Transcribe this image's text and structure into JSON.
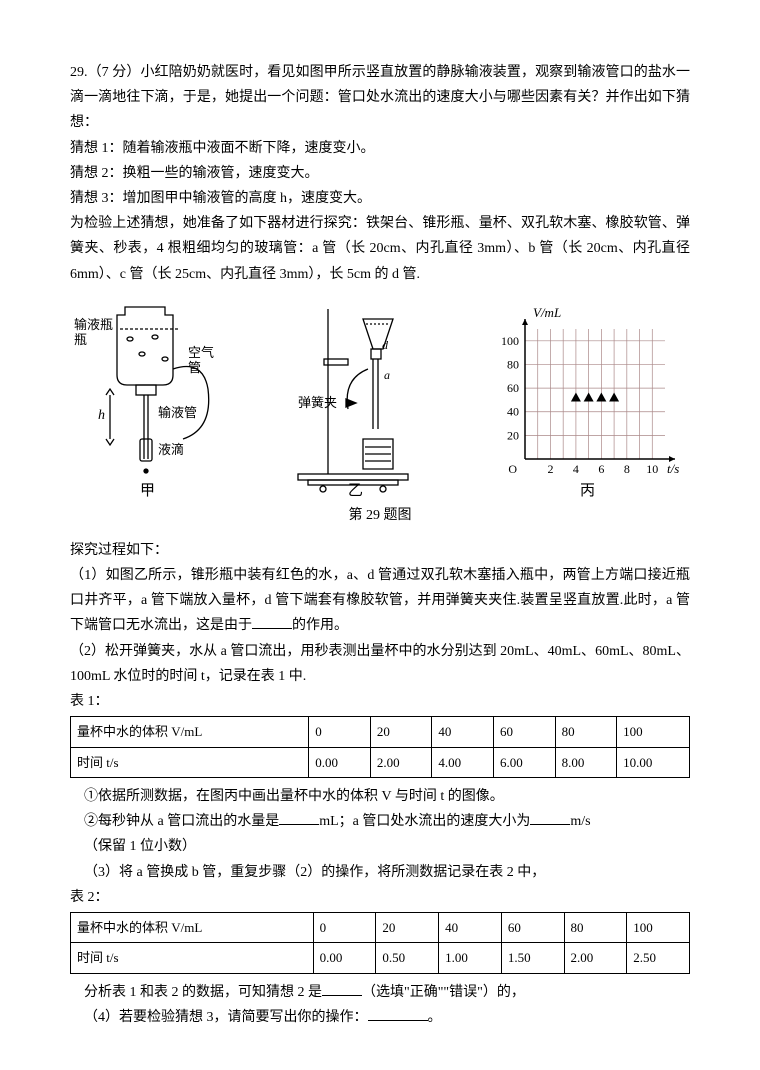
{
  "question": {
    "number": "29.",
    "points": "（7 分）",
    "intro": "小红陪奶奶就医时，看见如图甲所示竖直放置的静脉输液装置，观察到输液管口的盐水一滴一滴地往下滴，于是，她提出一个问题：管口处水流出的速度大小与哪些因素有关？并作出如下猜想：",
    "guess1": "猜想 1：随着输液瓶中液面不断下降，速度变小。",
    "guess2": "猜想 2：换粗一些的输液管，速度变大。",
    "guess3": "猜想 3：增加图甲中输液管的高度 h，速度变大。",
    "materials": "为检验上述猜想，她准备了如下器材进行探究：铁架台、锥形瓶、量杯、双孔软木塞、橡胶软管、弹簧夹、秒表，4 根粗细均匀的玻璃管：a 管（长 20cm、内孔直径 3mm）、b 管（长 20cm、内孔直径 6mm）、c 管（长 25cm、内孔直径 3mm），长 5cm 的 d 管.",
    "process_head": "探究过程如下：",
    "step1": "（1）如图乙所示，锥形瓶中装有红色的水，a、d 管通过双孔软木塞插入瓶中，两管上方端口接近瓶口井齐平，a 管下端放入量杯，d 管下端套有橡胶软管，并用弹簧夹夹住.装置呈竖直放置.此时，a 管下端管口无水流出，这是由于",
    "step1_tail": "的作用。",
    "step2": "（2）松开弹簧夹，水从 a 管口流出，用秒表测出量杯中的水分别达到 20mL、40mL、60mL、80mL、100mL 水位时的时间 t，记录在表 1 中.",
    "table1_label": "表 1：",
    "sub1": "①依据所测数据，在图丙中画出量杯中水的体积 V 与时间 t 的图像。",
    "sub2a": "②每秒钟从 a 管口流出的水量是",
    "sub2b": "mL；a 管口处水流出的速度大小为",
    "sub2c": "m/s",
    "sub2_note": "（保留 1 位小数）",
    "step3": "（3）将 a 管换成 b 管，重复步骤（2）的操作，将所测数据记录在表 2 中，",
    "table2_label": "表 2：",
    "analysis_a": "分析表 1 和表 2 的数据，可知猜想 2 是",
    "analysis_b": "（选填\"正确\"\"错误\"）的，",
    "step4": "（4）若要检验猜想 3，请简要写出你的操作：",
    "step4_tail": "。"
  },
  "table1": {
    "header_v": "量杯中水的体积 V/mL",
    "header_t": "时间 t/s",
    "cols": [
      "0",
      "20",
      "40",
      "60",
      "80",
      "100"
    ],
    "times": [
      "0.00",
      "2.00",
      "4.00",
      "6.00",
      "8.00",
      "10.00"
    ]
  },
  "table2": {
    "header_v": "量杯中水的体积 V/mL",
    "header_t": "时间 t/s",
    "cols": [
      "0",
      "20",
      "40",
      "60",
      "80",
      "100"
    ],
    "times": [
      "0.00",
      "0.50",
      "1.00",
      "1.50",
      "2.00",
      "2.50"
    ]
  },
  "fig": {
    "caption": "第 29 题图",
    "label_jia": "甲",
    "label_yi": "乙",
    "label_bing": "丙",
    "jia": {
      "bottle": "输液瓶",
      "airtube": "空气管",
      "tube": "输液管",
      "drop": "液滴",
      "h": "h"
    },
    "yi": {
      "clamp": "弹簧夹",
      "d": "d",
      "a": "a"
    },
    "bing": {
      "ylabel": "V/mL",
      "xlabel": "t/s",
      "origin": "O",
      "yticks": [
        "20",
        "40",
        "60",
        "80",
        "100"
      ],
      "xticks": [
        "2",
        "4",
        "6",
        "8",
        "10"
      ],
      "ymax": 110,
      "xmax": 11,
      "points": [
        {
          "x": 4,
          "y": 52
        },
        {
          "x": 5,
          "y": 52
        },
        {
          "x": 6,
          "y": 52
        },
        {
          "x": 7,
          "y": 52
        }
      ],
      "grid_color": "#a88",
      "axis_color": "#000"
    }
  }
}
